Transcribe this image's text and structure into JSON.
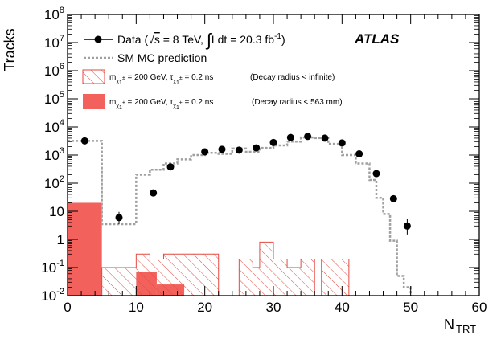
{
  "chart_data": {
    "type": "histogram",
    "x_label": "N",
    "x_label_sub": "TRT",
    "y_label": "Tracks",
    "x_range": [
      0,
      60
    ],
    "y_range": [
      0.01,
      100000000
    ],
    "y_scale": "log",
    "x_ticks": [
      0,
      10,
      20,
      30,
      40,
      50,
      60
    ],
    "x_tick_labels": [
      "0",
      "10",
      "20",
      "30",
      "40",
      "50",
      "60"
    ],
    "y_ticks": [
      {
        "value": 100000000,
        "base": "10",
        "exp": "8"
      },
      {
        "value": 10000000,
        "base": "10",
        "exp": "7"
      },
      {
        "value": 1000000,
        "base": "10",
        "exp": "6"
      },
      {
        "value": 100000,
        "base": "10",
        "exp": "5"
      },
      {
        "value": 10000,
        "base": "10",
        "exp": "4"
      },
      {
        "value": 1000,
        "base": "10",
        "exp": "3"
      },
      {
        "value": 100,
        "base": "10",
        "exp": "2"
      },
      {
        "value": 10,
        "base": "10",
        "exp": ""
      },
      {
        "value": 1,
        "base": "1",
        "exp": ""
      },
      {
        "value": 0.1,
        "base": "10",
        "exp": "-1"
      },
      {
        "value": 0.01,
        "base": "10",
        "exp": "-2"
      }
    ],
    "experiment_label": "ATLAS",
    "legend_position": "top-left",
    "series": [
      {
        "name_parts": [
          "Data (",
          "s",
          " = 8 TeV, ",
          "Ldt = 20.3 fb",
          "-1",
          ")"
        ],
        "kind": "points",
        "color": "#000000",
        "points": [
          {
            "x": 2.5,
            "y": 3200
          },
          {
            "x": 7.5,
            "y": 6,
            "err_low": 3.5,
            "err_high": 9.5
          },
          {
            "x": 12.5,
            "y": 45
          },
          {
            "x": 15,
            "y": 380
          },
          {
            "x": 20,
            "y": 1300
          },
          {
            "x": 22.5,
            "y": 1600
          },
          {
            "x": 25,
            "y": 1500
          },
          {
            "x": 27.5,
            "y": 1800
          },
          {
            "x": 30,
            "y": 2800
          },
          {
            "x": 32.5,
            "y": 4200
          },
          {
            "x": 35,
            "y": 4600
          },
          {
            "x": 37.5,
            "y": 4000
          },
          {
            "x": 40,
            "y": 2700
          },
          {
            "x": 42.5,
            "y": 1100
          },
          {
            "x": 45,
            "y": 220
          },
          {
            "x": 47.5,
            "y": 28
          },
          {
            "x": 49.5,
            "y": 3,
            "err_low": 1.5,
            "err_high": 5.5
          }
        ]
      },
      {
        "name": "SM MC prediction",
        "kind": "step",
        "color": "#a0a0a0",
        "bins": [
          {
            "x0": 0,
            "x1": 5,
            "y": 3200
          },
          {
            "x0": 5,
            "x1": 10,
            "y": 3.5
          },
          {
            "x0": 10,
            "x1": 12,
            "y": 200
          },
          {
            "x0": 12,
            "x1": 14,
            "y": 300
          },
          {
            "x0": 14,
            "x1": 16,
            "y": 500
          },
          {
            "x0": 16,
            "x1": 18,
            "y": 700
          },
          {
            "x0": 18,
            "x1": 20,
            "y": 1000
          },
          {
            "x0": 20,
            "x1": 22,
            "y": 1200
          },
          {
            "x0": 22,
            "x1": 24,
            "y": 1100
          },
          {
            "x0": 24,
            "x1": 26,
            "y": 1700
          },
          {
            "x0": 26,
            "x1": 28,
            "y": 1300
          },
          {
            "x0": 28,
            "x1": 30,
            "y": 1800
          },
          {
            "x0": 30,
            "x1": 32,
            "y": 2200
          },
          {
            "x0": 32,
            "x1": 34,
            "y": 3000
          },
          {
            "x0": 34,
            "x1": 36,
            "y": 4200
          },
          {
            "x0": 36,
            "x1": 38,
            "y": 4000
          },
          {
            "x0": 38,
            "x1": 40,
            "y": 2500
          },
          {
            "x0": 40,
            "x1": 42,
            "y": 1000
          },
          {
            "x0": 42,
            "x1": 44,
            "y": 500
          },
          {
            "x0": 44,
            "x1": 45,
            "y": 130
          },
          {
            "x0": 45,
            "x1": 46,
            "y": 30
          },
          {
            "x0": 46,
            "x1": 47,
            "y": 8
          },
          {
            "x0": 47,
            "x1": 48,
            "y": 0.9
          },
          {
            "x0": 48,
            "x1": 49,
            "y": 0.05
          },
          {
            "x0": 49,
            "x1": 50,
            "y": 0.02
          }
        ]
      },
      {
        "name_parts": [
          "m",
          "χ",
          "1",
          "±",
          " = 200 GeV, τ",
          "χ",
          "1",
          "±",
          " = 0.2 ns"
        ],
        "note": "(Decay radius < infinite)",
        "kind": "hatched",
        "color": "#e34a3f",
        "bins": [
          {
            "x0": 5,
            "x1": 10,
            "y": 0.1
          },
          {
            "x0": 10,
            "x1": 12,
            "y": 0.3
          },
          {
            "x0": 12,
            "x1": 14,
            "y": 0.2
          },
          {
            "x0": 14,
            "x1": 22,
            "y": 0.3
          },
          {
            "x0": 22,
            "x1": 25,
            "y": 0.01
          },
          {
            "x0": 25,
            "x1": 27,
            "y": 0.2
          },
          {
            "x0": 27,
            "x1": 28,
            "y": 0.1
          },
          {
            "x0": 28,
            "x1": 30,
            "y": 0.8
          },
          {
            "x0": 30,
            "x1": 32,
            "y": 0.2
          },
          {
            "x0": 32,
            "x1": 34,
            "y": 0.1
          },
          {
            "x0": 34,
            "x1": 36,
            "y": 0.2
          },
          {
            "x0": 36,
            "x1": 37,
            "y": 0.01
          },
          {
            "x0": 37,
            "x1": 39,
            "y": 0.2
          },
          {
            "x0": 39,
            "x1": 41,
            "y": 0.2
          }
        ]
      },
      {
        "name_parts": [
          "m",
          "χ",
          "1",
          "±",
          " = 200 GeV, τ",
          "χ",
          "1",
          "±",
          " = 0.2 ns"
        ],
        "note": "(Decay radius < 563 mm)",
        "kind": "filled",
        "color": "#f2615b",
        "bins": [
          {
            "x0": 0,
            "x1": 5,
            "y": 20
          },
          {
            "x0": 10,
            "x1": 13,
            "y": 0.07
          },
          {
            "x0": 13,
            "x1": 17,
            "y": 0.025
          }
        ]
      }
    ]
  }
}
